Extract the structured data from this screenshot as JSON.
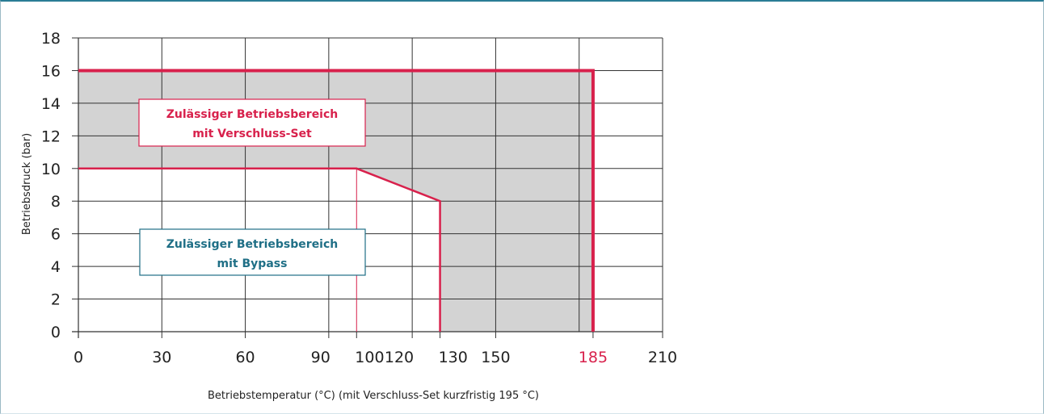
{
  "chart_data": {
    "type": "area",
    "x_ticks": [
      0,
      30,
      60,
      90,
      100,
      120,
      130,
      150,
      185,
      210
    ],
    "x_tick_labels": [
      "0",
      "30",
      "60",
      "90",
      "100",
      "120",
      "130",
      "150",
      "185",
      "210"
    ],
    "y_ticks": [
      0,
      2,
      4,
      6,
      8,
      10,
      12,
      14,
      16,
      18
    ],
    "y_tick_labels": [
      "0",
      "2",
      "4",
      "6",
      "8",
      "10",
      "12",
      "14",
      "16",
      "18"
    ],
    "xlim": [
      0,
      210
    ],
    "ylim": [
      0,
      18
    ],
    "xlabel": "Betriebstemperatur (°C)  (mit Verschluss-Set kurzfristig 195 °C)",
    "ylabel": "Betriebsdruck (bar)",
    "grid": true,
    "highlighted_x_tick": 185,
    "regions": [
      {
        "label_line1": "Zulässiger Betriebsbereich",
        "label_line2": "mit Verschluss-Set",
        "boundary": [
          [
            0,
            16
          ],
          [
            185,
            16
          ],
          [
            185,
            0
          ]
        ],
        "color": "#d8214c"
      },
      {
        "label_line1": "Zulässiger Betriebsbereich",
        "label_line2": "mit Bypass",
        "boundary": [
          [
            0,
            10
          ],
          [
            100,
            10
          ],
          [
            130,
            8
          ],
          [
            130,
            0
          ]
        ],
        "color": "#1f6f86"
      }
    ],
    "shaded_area": {
      "description_points": [
        [
          0,
          16
        ],
        [
          185,
          16
        ],
        [
          185,
          0
        ],
        [
          130,
          0
        ],
        [
          130,
          8
        ],
        [
          100,
          10
        ],
        [
          0,
          10
        ]
      ],
      "color": "#d3d3d3"
    },
    "reference_line_x": 100
  }
}
